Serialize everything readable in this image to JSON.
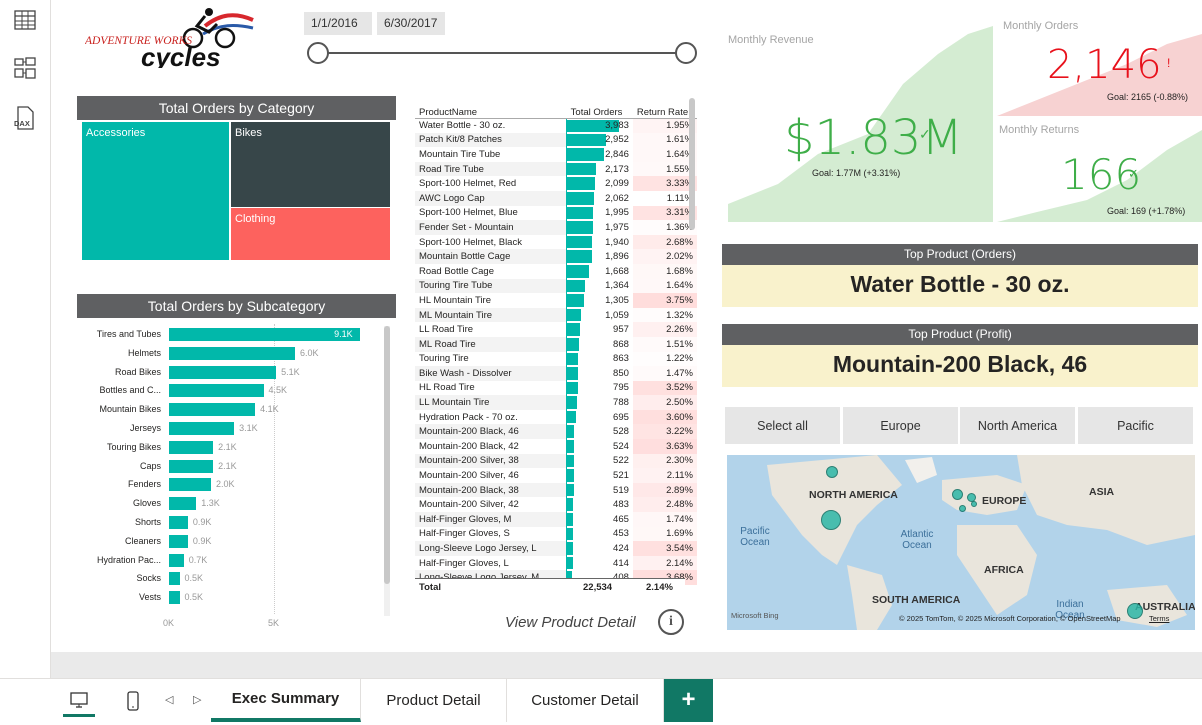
{
  "left_nav": {
    "report_icon": "table-icon",
    "model_icon": "model-icon",
    "dax_icon": "dax-icon",
    "dax_label": "DAX"
  },
  "logo": {
    "line1": "ADVENTURE WORKS",
    "line2": "cycles"
  },
  "date_slicer": {
    "start": "1/1/2016",
    "end": "6/30/2017"
  },
  "category_treemap": {
    "title": "Total Orders by Category",
    "tiles": [
      {
        "label": "Accessories",
        "color": "#01b8aa"
      },
      {
        "label": "Bikes",
        "color": "#374649"
      },
      {
        "label": "Clothing",
        "color": "#fd625e"
      }
    ]
  },
  "chart_data": {
    "type": "bar",
    "title": "Total Orders by Subcategory",
    "categories": [
      "Tires and Tubes",
      "Helmets",
      "Road Bikes",
      "Bottles and C...",
      "Mountain Bikes",
      "Jerseys",
      "Touring Bikes",
      "Caps",
      "Fenders",
      "Gloves",
      "Shorts",
      "Cleaners",
      "Hydration Pac...",
      "Socks",
      "Vests"
    ],
    "values": [
      9100,
      6000,
      5100,
      4500,
      4100,
      3100,
      2100,
      2100,
      2000,
      1300,
      900,
      900,
      700,
      500,
      500
    ],
    "value_labels": [
      "9.1K",
      "6.0K",
      "5.1K",
      "4.5K",
      "4.1K",
      "3.1K",
      "2.1K",
      "2.1K",
      "2.0K",
      "1.3K",
      "0.9K",
      "0.9K",
      "0.7K",
      "0.5K",
      "0.5K"
    ],
    "xticks": [
      "0K",
      "5K"
    ],
    "xlim": [
      0,
      10000
    ],
    "color": "#01b8aa"
  },
  "product_table": {
    "headers": [
      "ProductName",
      "Total Orders",
      "Return Rate"
    ],
    "max_orders": 3983,
    "rows": [
      [
        "Water Bottle - 30 oz.",
        "3,983",
        "1.95%",
        3983,
        1.95
      ],
      [
        "Patch Kit/8 Patches",
        "2,952",
        "1.61%",
        2952,
        1.61
      ],
      [
        "Mountain Tire Tube",
        "2,846",
        "1.64%",
        2846,
        1.64
      ],
      [
        "Road Tire Tube",
        "2,173",
        "1.55%",
        2173,
        1.55
      ],
      [
        "Sport-100 Helmet, Red",
        "2,099",
        "3.33%",
        2099,
        3.33
      ],
      [
        "AWC Logo Cap",
        "2,062",
        "1.11%",
        2062,
        1.11
      ],
      [
        "Sport-100 Helmet, Blue",
        "1,995",
        "3.31%",
        1995,
        3.31
      ],
      [
        "Fender Set - Mountain",
        "1,975",
        "1.36%",
        1975,
        1.36
      ],
      [
        "Sport-100 Helmet, Black",
        "1,940",
        "2.68%",
        1940,
        2.68
      ],
      [
        "Mountain Bottle Cage",
        "1,896",
        "2.02%",
        1896,
        2.02
      ],
      [
        "Road Bottle Cage",
        "1,668",
        "1.68%",
        1668,
        1.68
      ],
      [
        "Touring Tire Tube",
        "1,364",
        "1.64%",
        1364,
        1.64
      ],
      [
        "HL Mountain Tire",
        "1,305",
        "3.75%",
        1305,
        3.75
      ],
      [
        "ML Mountain Tire",
        "1,059",
        "1.32%",
        1059,
        1.32
      ],
      [
        "LL Road Tire",
        "957",
        "2.26%",
        957,
        2.26
      ],
      [
        "ML Road Tire",
        "868",
        "1.51%",
        868,
        1.51
      ],
      [
        "Touring Tire",
        "863",
        "1.22%",
        863,
        1.22
      ],
      [
        "Bike Wash - Dissolver",
        "850",
        "1.47%",
        850,
        1.47
      ],
      [
        "HL Road Tire",
        "795",
        "3.52%",
        795,
        3.52
      ],
      [
        "LL Mountain Tire",
        "788",
        "2.50%",
        788,
        2.5
      ],
      [
        "Hydration Pack - 70 oz.",
        "695",
        "3.60%",
        695,
        3.6
      ],
      [
        "Mountain-200 Black, 46",
        "528",
        "3.22%",
        528,
        3.22
      ],
      [
        "Mountain-200 Black, 42",
        "524",
        "3.63%",
        524,
        3.63
      ],
      [
        "Mountain-200 Silver, 38",
        "522",
        "2.30%",
        522,
        2.3
      ],
      [
        "Mountain-200 Silver, 46",
        "521",
        "2.11%",
        521,
        2.11
      ],
      [
        "Mountain-200 Black, 38",
        "519",
        "2.89%",
        519,
        2.89
      ],
      [
        "Mountain-200 Silver, 42",
        "483",
        "2.48%",
        483,
        2.48
      ],
      [
        "Half-Finger Gloves, M",
        "465",
        "1.74%",
        465,
        1.74
      ],
      [
        "Half-Finger Gloves, S",
        "453",
        "1.69%",
        453,
        1.69
      ],
      [
        "Long-Sleeve Logo Jersey, L",
        "424",
        "3.54%",
        424,
        3.54
      ],
      [
        "Half-Finger Gloves, L",
        "414",
        "2.14%",
        414,
        2.14
      ],
      [
        "Long-Sleeve Logo Jersey, M",
        "408",
        "3.68%",
        408,
        3.68
      ]
    ],
    "total": {
      "label": "Total",
      "orders": "22,534",
      "rate": "2.14%"
    }
  },
  "view_detail": {
    "label": "View Product Detail",
    "info_icon": "info-icon"
  },
  "kpi": {
    "revenue": {
      "label": "Monthly Revenue",
      "value": "$1.83M",
      "goal": "Goal: 1.77M (+3.31%)",
      "color": "#3fae49"
    },
    "orders": {
      "label": "Monthly Orders",
      "value": "2,146",
      "goal": "Goal: 2165 (-0.88%)",
      "color": "#e8111b"
    },
    "returns": {
      "label": "Monthly Returns",
      "value": "166",
      "goal": "Goal: 169 (+1.78%)",
      "color": "#3fae49"
    }
  },
  "top_orders": {
    "title": "Top Product (Orders)",
    "value": "Water Bottle - 30 oz."
  },
  "top_profit": {
    "title": "Top Product (Profit)",
    "value": "Mountain-200 Black, 46"
  },
  "region_slicer": {
    "options": [
      "Select all",
      "Europe",
      "North America",
      "Pacific"
    ]
  },
  "map": {
    "labels": {
      "na": "NORTH AMERICA",
      "eu": "EUROPE",
      "asia": "ASIA",
      "africa": "AFRICA",
      "sa": "SOUTH AMERICA",
      "aus": "AUSTRALIA"
    },
    "oceans": {
      "pacific": "Pacific\nOcean",
      "atlantic": "Atlantic\nOcean",
      "indian": "Indian\nOcean"
    },
    "brand": "Microsoft Bing",
    "attribution": "© 2025 TomTom, © 2025 Microsoft Corporation, © OpenStreetMap",
    "terms": "Terms"
  },
  "tabs": {
    "items": [
      "Exec Summary",
      "Product Detail",
      "Customer Detail"
    ],
    "active": 0,
    "add_label": "+"
  }
}
